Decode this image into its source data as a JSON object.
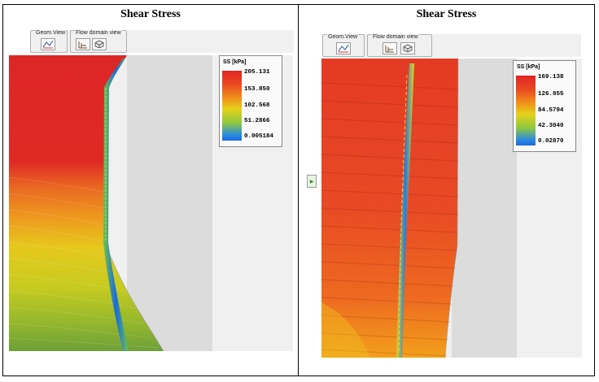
{
  "panels": [
    {
      "title": "Shear Stress",
      "toolbar": {
        "geom_view_label": "Geom.View",
        "flow_domain_label": "Flow domain view"
      },
      "legend": {
        "title": "SS [kPa]",
        "ticks": [
          "205.131",
          "153.850",
          "102.568",
          "51.2866",
          "0.005184"
        ]
      }
    },
    {
      "title": "Shear Stress",
      "toolbar": {
        "geom_view_label": "Geom.View",
        "flow_domain_label": "Flow domain view"
      },
      "legend": {
        "title": "SS [kPa]",
        "ticks": [
          "169.138",
          "126.855",
          "84.5794",
          "42.3040",
          "0.02870"
        ]
      }
    }
  ],
  "colors": {
    "colormap": [
      "#e02424",
      "#f07a1a",
      "#e6d21a",
      "#7cc04a",
      "#1a7ae0"
    ]
  }
}
